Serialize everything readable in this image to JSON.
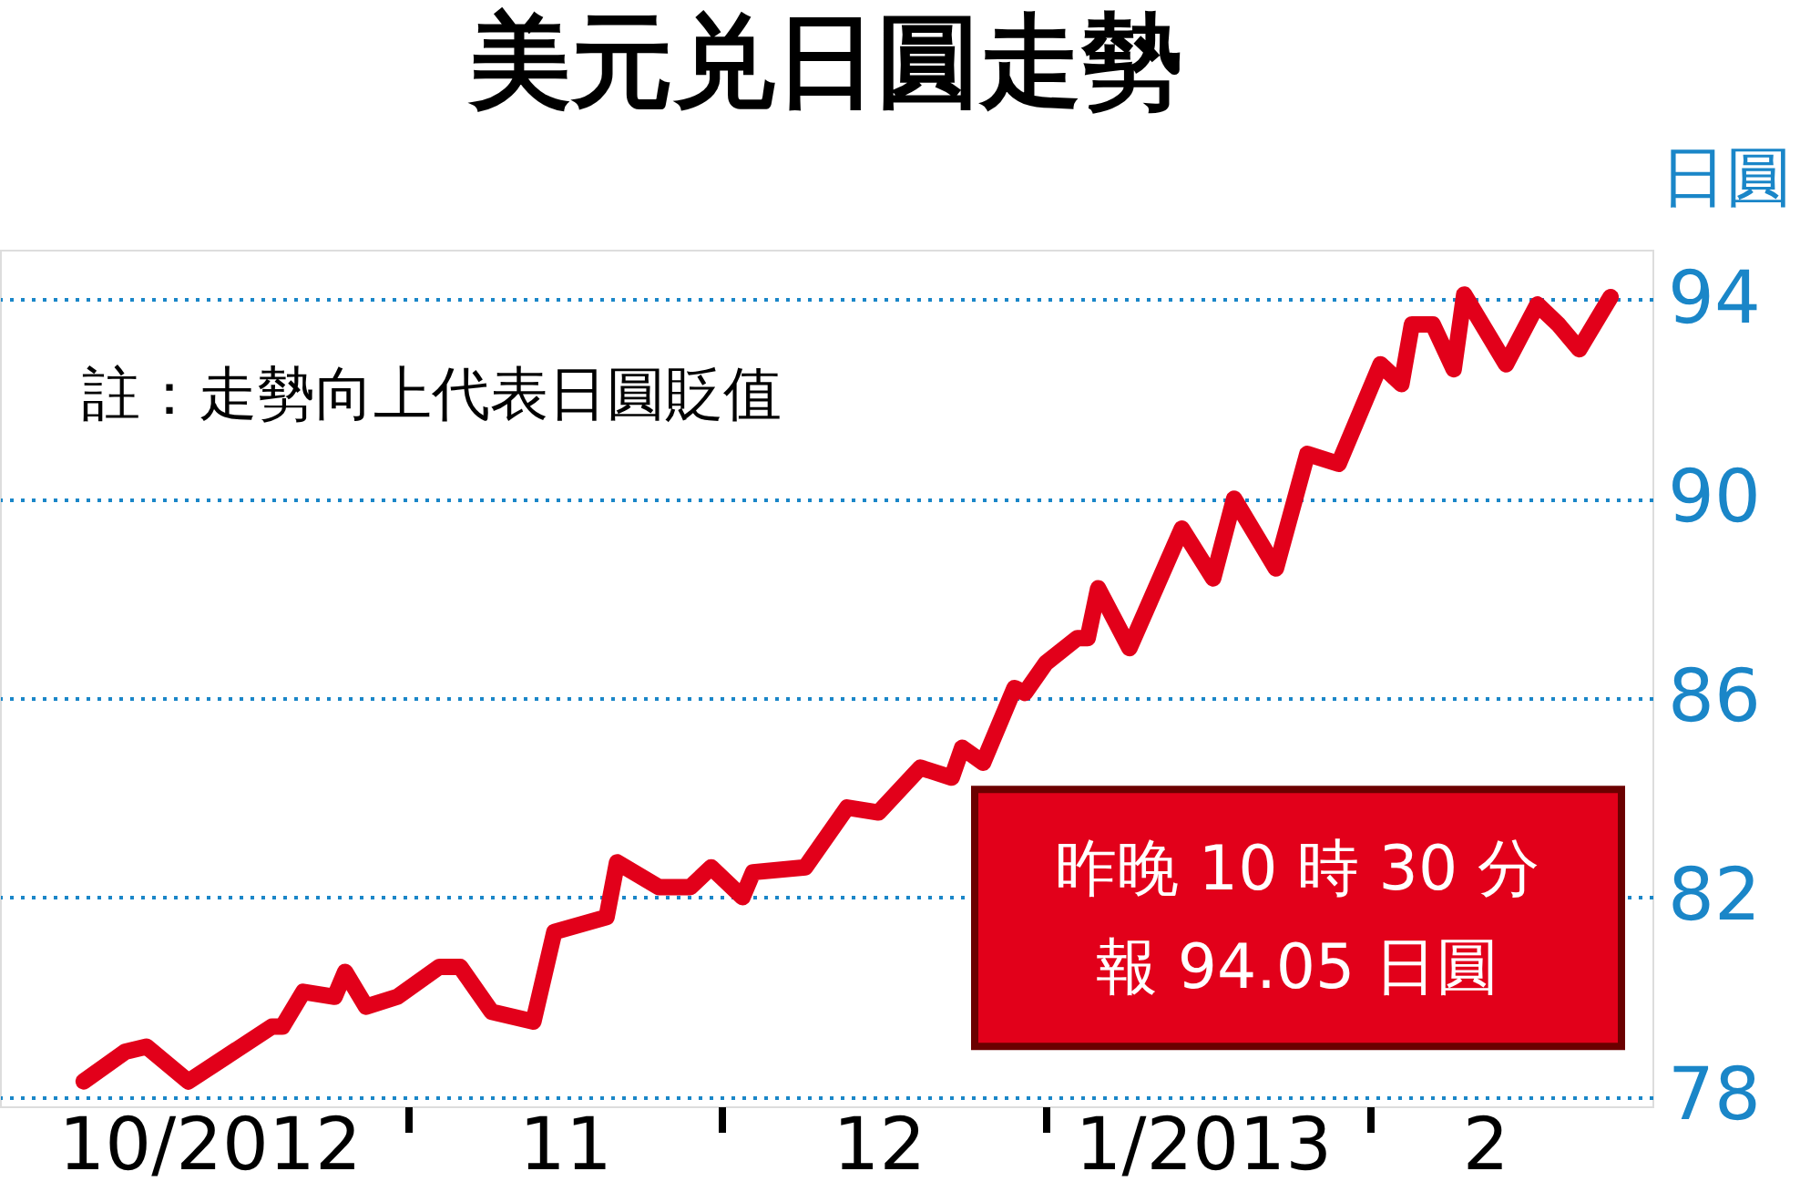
{
  "chart_data": {
    "type": "line",
    "title": "美元兑日圓走勢",
    "ylabel": "日圓",
    "annotations": [
      "註：走勢向上代表日圓貶值",
      "昨晚 10 時 30 分",
      "報 94.05 日圓"
    ],
    "x": [
      "2012-10-01",
      "2012-10-05",
      "2012-10-07",
      "2012-10-11",
      "2012-10-19",
      "2012-10-20",
      "2012-10-22",
      "2012-10-25",
      "2012-10-26",
      "2012-10-28",
      "2012-10-31",
      "2012-11-04",
      "2012-11-06",
      "2012-11-09",
      "2012-11-13",
      "2012-11-15",
      "2012-11-20",
      "2012-11-21",
      "2012-11-25",
      "2012-11-28",
      "2012-11-30",
      "2012-12-03",
      "2012-12-04",
      "2012-12-09",
      "2012-12-13",
      "2012-12-16",
      "2012-12-20",
      "2012-12-23",
      "2012-12-24",
      "2012-12-26",
      "2012-12-29",
      "2012-12-30",
      "2013-01-01",
      "2013-01-04",
      "2013-01-05",
      "2013-01-06",
      "2013-01-09",
      "2013-01-14",
      "2013-01-17",
      "2013-01-19",
      "2013-01-23",
      "2013-01-26",
      "2013-01-29",
      "2013-02-02",
      "2013-02-04",
      "2013-02-05",
      "2013-02-07",
      "2013-02-09",
      "2013-02-10",
      "2013-02-12",
      "2013-02-14",
      "2013-02-17",
      "2013-02-19",
      "2013-02-21",
      "2013-02-24"
    ],
    "series": [
      {
        "color": "#e2001a",
        "values": [
          78.3,
          78.9,
          79.0,
          78.3,
          79.4,
          79.4,
          80.1,
          80.0,
          80.5,
          79.8,
          80.0,
          80.6,
          80.6,
          79.7,
          79.5,
          81.3,
          81.6,
          82.7,
          82.2,
          82.2,
          82.6,
          82.0,
          82.5,
          82.6,
          83.8,
          83.7,
          84.6,
          84.4,
          85.0,
          84.7,
          86.2,
          86.1,
          86.7,
          87.2,
          87.2,
          88.2,
          87.0,
          89.4,
          88.4,
          90.0,
          88.6,
          90.9,
          90.7,
          92.7,
          92.3,
          93.5,
          93.5,
          92.6,
          94.1,
          93.4,
          92.7,
          93.9,
          93.5,
          93.0,
          94.05
        ]
      }
    ],
    "xlim": [
      "2012-09-23",
      "2013-02-28"
    ],
    "xticks": [
      {
        "value": "2012-10-13",
        "label": "10/2012"
      },
      {
        "value": "2012-11-01",
        "label": null
      },
      {
        "value": "2012-11-16",
        "label": "11"
      },
      {
        "value": "2012-12-01",
        "label": null
      },
      {
        "value": "2012-12-16",
        "label": "12"
      },
      {
        "value": "2013-01-01",
        "label": null
      },
      {
        "value": "2013-01-16",
        "label": "1/2013"
      },
      {
        "value": "2013-02-01",
        "label": null
      },
      {
        "value": "2013-02-12",
        "label": "2"
      }
    ],
    "ylim": [
      77.8,
      95
    ],
    "yticks": [
      78,
      82,
      86,
      90,
      94
    ],
    "grid": "y",
    "legend": false,
    "marker": "none",
    "line_style": "solid"
  }
}
